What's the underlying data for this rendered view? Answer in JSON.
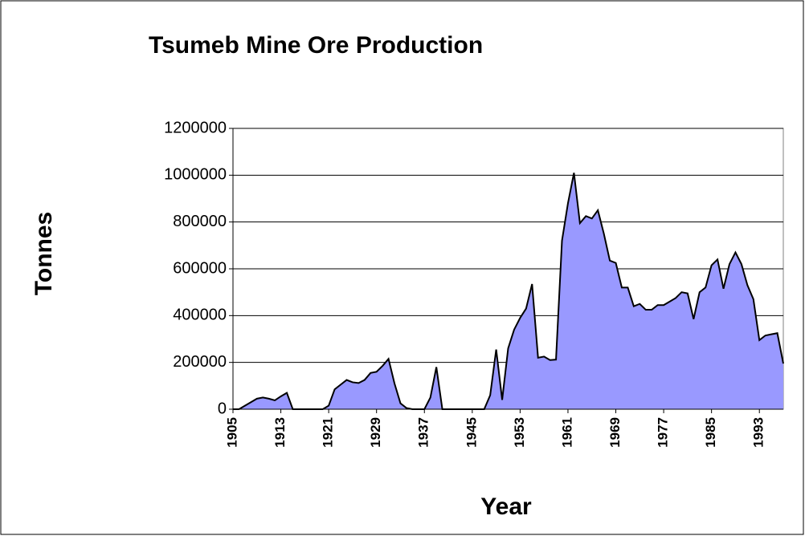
{
  "chart_data": {
    "type": "area",
    "title": "Tsumeb Mine Ore Production",
    "x_label": "Year",
    "y_label": "Tonnes",
    "categories": [
      "1905",
      null,
      null,
      null,
      null,
      null,
      null,
      null,
      "1913",
      null,
      null,
      null,
      null,
      null,
      null,
      null,
      "1921",
      null,
      null,
      null,
      null,
      null,
      null,
      null,
      "1929",
      null,
      null,
      null,
      null,
      null,
      null,
      null,
      "1937",
      null,
      null,
      null,
      null,
      null,
      null,
      null,
      "1945",
      null,
      null,
      null,
      null,
      null,
      null,
      null,
      "1953",
      null,
      null,
      null,
      null,
      null,
      null,
      null,
      "1961",
      null,
      null,
      null,
      null,
      null,
      null,
      null,
      "1969",
      null,
      null,
      null,
      null,
      null,
      null,
      null,
      "1977",
      null,
      null,
      null,
      null,
      null,
      null,
      null,
      "1985",
      null,
      null,
      null,
      null,
      null,
      null,
      null,
      "1993",
      null,
      null,
      null,
      null
    ],
    "values": [
      0,
      0,
      15000,
      30000,
      45000,
      50000,
      45000,
      38000,
      55000,
      70000,
      0,
      0,
      0,
      0,
      0,
      0,
      15000,
      85000,
      105000,
      125000,
      115000,
      112000,
      125000,
      155000,
      160000,
      185000,
      215000,
      110000,
      25000,
      5000,
      0,
      0,
      0,
      50000,
      180000,
      0,
      0,
      0,
      0,
      0,
      0,
      0,
      0,
      60000,
      255000,
      40000,
      260000,
      340000,
      390000,
      430000,
      535000,
      220000,
      225000,
      210000,
      212000,
      720000,
      880000,
      1010000,
      795000,
      825000,
      815000,
      850000,
      750000,
      635000,
      625000,
      520000,
      520000,
      440000,
      450000,
      425000,
      425000,
      445000,
      445000,
      460000,
      475000,
      500000,
      495000,
      385000,
      500000,
      520000,
      615000,
      640000,
      515000,
      620000,
      670000,
      620000,
      530000,
      470000,
      295000,
      315000,
      320000,
      325000,
      195000
    ],
    "color": "#9999ff",
    "ylim": [
      0,
      1200000
    ],
    "yticks": [
      0,
      200000,
      400000,
      600000,
      800000,
      1000000,
      1200000
    ],
    "grid": true
  }
}
